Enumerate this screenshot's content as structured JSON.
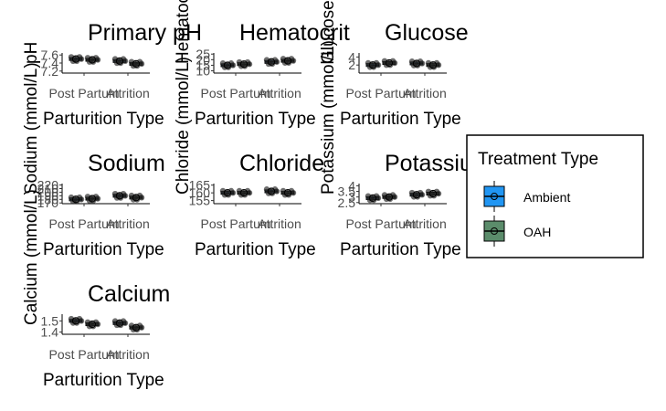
{
  "chart_data": [
    {
      "type": "box",
      "title": "Primary pH",
      "ylabel": "pH",
      "xlabel": "Parturition Type",
      "categories": [
        "Post Partum",
        "Attrition"
      ],
      "yticks": [
        7.2,
        7.4,
        7.6
      ],
      "ylim": [
        7.15,
        7.65
      ],
      "series": [
        {
          "name": "Ambient",
          "values": [
            7.5,
            7.45
          ]
        },
        {
          "name": "OAH",
          "values": [
            7.48,
            7.38
          ]
        }
      ]
    },
    {
      "type": "box",
      "title": "Hematocrit",
      "ylabel": "Hematocrit (%)",
      "xlabel": "Parturition Type",
      "categories": [
        "Post Partum",
        "Attrition"
      ],
      "yticks": [
        10,
        15,
        20,
        25
      ],
      "ylim": [
        8,
        26
      ],
      "series": [
        {
          "name": "Ambient",
          "values": [
            15,
            18
          ]
        },
        {
          "name": "OAH",
          "values": [
            16,
            19
          ]
        }
      ]
    },
    {
      "type": "box",
      "title": "Glucose",
      "ylabel": "Glucose (mmol/L)",
      "xlabel": "Parturition Type",
      "categories": [
        "Post Partum",
        "Attrition"
      ],
      "yticks": [
        2,
        4
      ],
      "ylim": [
        0,
        5
      ],
      "series": [
        {
          "name": "Ambient",
          "values": [
            2.0,
            2.4
          ]
        },
        {
          "name": "OAH",
          "values": [
            2.5,
            2.0
          ]
        }
      ]
    },
    {
      "type": "box",
      "title": "Sodium",
      "ylabel": "Sodium (mmol/L)",
      "xlabel": "Parturition Type",
      "categories": [
        "Post Partum",
        "Attrition"
      ],
      "yticks": [
        170,
        180,
        190,
        200,
        210,
        220
      ],
      "ylim": [
        168,
        224
      ],
      "series": [
        {
          "name": "Ambient",
          "values": [
            180,
            190
          ]
        },
        {
          "name": "OAH",
          "values": [
            182,
            185
          ]
        }
      ]
    },
    {
      "type": "box",
      "title": "Chloride",
      "ylabel": "Chloride (mmol/L)",
      "xlabel": "Parturition Type",
      "categories": [
        "Post Partum",
        "Attrition"
      ],
      "yticks": [
        155,
        160,
        165
      ],
      "ylim": [
        153,
        166
      ],
      "series": [
        {
          "name": "Ambient",
          "values": [
            160,
            161
          ]
        },
        {
          "name": "OAH",
          "values": [
            160,
            160
          ]
        }
      ]
    },
    {
      "type": "box",
      "title": "Potassium",
      "ylabel": "Potassium (mmol/L)",
      "xlabel": "Parturition Type",
      "categories": [
        "Post Partum",
        "Attrition"
      ],
      "yticks": [
        2.5,
        3.0,
        3.5,
        4.0
      ],
      "ylim": [
        2.4,
        4.2
      ],
      "series": [
        {
          "name": "Ambient",
          "values": [
            2.9,
            3.2
          ]
        },
        {
          "name": "OAH",
          "values": [
            3.0,
            3.3
          ]
        }
      ]
    },
    {
      "type": "box",
      "title": "Calcium",
      "ylabel": "Calcium (mmol/L)",
      "xlabel": "Parturition Type",
      "categories": [
        "Post Partum",
        "Attrition"
      ],
      "yticks": [
        1.4,
        1.5
      ],
      "ylim": [
        1.38,
        1.56
      ],
      "series": [
        {
          "name": "Ambient",
          "values": [
            1.5,
            1.48
          ]
        },
        {
          "name": "OAH",
          "values": [
            1.47,
            1.44
          ]
        }
      ]
    }
  ],
  "legend": {
    "title": "Treatment Type",
    "position": "right",
    "items": [
      {
        "name": "Ambient",
        "color": "#2196f3"
      },
      {
        "name": "OAH",
        "color": "#5b8c6b"
      }
    ]
  }
}
